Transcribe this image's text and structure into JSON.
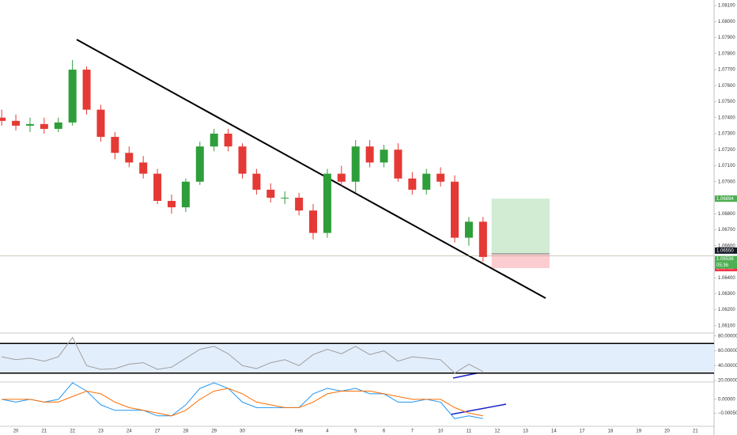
{
  "chart_data": {
    "type": "candlestick",
    "x": [
      -0.5,
      0,
      0.5,
      1,
      1.5,
      2,
      2.5,
      3,
      3.5,
      4,
      4.5,
      5,
      5.5,
      6,
      6.5,
      7,
      7.5,
      8,
      8.5,
      9,
      9.5,
      10,
      10.5,
      11,
      11.5,
      12,
      12.5,
      13,
      13.5,
      14,
      14.5,
      15,
      15.5,
      16,
      16.5
    ],
    "open": [
      1.074,
      1.0738,
      1.0735,
      1.0736,
      1.0733,
      1.0737,
      1.077,
      1.0745,
      1.0728,
      1.0718,
      1.0712,
      1.0705,
      1.0688,
      1.0684,
      1.07,
      1.0722,
      1.073,
      1.0722,
      1.0705,
      1.0695,
      1.069,
      1.069,
      1.0682,
      1.0668,
      1.0705,
      1.07,
      1.0722,
      1.0712,
      1.072,
      1.0702,
      1.0695,
      1.0705,
      1.07,
      1.0665,
      1.0675
    ],
    "high": [
      1.0745,
      1.0742,
      1.074,
      1.074,
      1.074,
      1.0776,
      1.0772,
      1.0748,
      1.0731,
      1.0722,
      1.0716,
      1.0708,
      1.0692,
      1.0702,
      1.0725,
      1.0733,
      1.0733,
      1.0724,
      1.0708,
      1.0699,
      1.0694,
      1.0693,
      1.0686,
      1.0708,
      1.071,
      1.0726,
      1.0726,
      1.0723,
      1.0724,
      1.0706,
      1.0708,
      1.0709,
      1.0704,
      1.0678,
      1.0678
    ],
    "low": [
      1.0735,
      1.0732,
      1.0731,
      1.073,
      1.0731,
      1.0735,
      1.0742,
      1.0725,
      1.0714,
      1.0709,
      1.0702,
      1.0686,
      1.068,
      1.0681,
      1.0698,
      1.0719,
      1.0719,
      1.0702,
      1.0692,
      1.0687,
      1.0686,
      1.0679,
      1.0664,
      1.0665,
      1.0697,
      1.0693,
      1.0709,
      1.0709,
      1.07,
      1.0692,
      1.0692,
      1.0697,
      1.0662,
      1.066,
      1.065
    ],
    "close": [
      1.0738,
      1.0735,
      1.0736,
      1.0733,
      1.0737,
      1.077,
      1.0745,
      1.0728,
      1.0718,
      1.0712,
      1.0705,
      1.0688,
      1.0684,
      1.07,
      1.0722,
      1.073,
      1.0722,
      1.0705,
      1.0695,
      1.069,
      1.069,
      1.0682,
      1.0668,
      1.0705,
      1.07,
      1.0722,
      1.0712,
      1.072,
      1.0702,
      1.0695,
      1.0705,
      1.07,
      1.0665,
      1.0675,
      1.0653
    ],
    "up_color": "#2e9e3a",
    "down_color": "#e53935",
    "xlim": [
      -0.56,
      24.66
    ],
    "xticks": [
      {
        "value": 0,
        "label": "20"
      },
      {
        "value": 1,
        "label": "21"
      },
      {
        "value": 2,
        "label": "22"
      },
      {
        "value": 3,
        "label": "23"
      },
      {
        "value": 4,
        "label": "24"
      },
      {
        "value": 5,
        "label": "27"
      },
      {
        "value": 6,
        "label": "28"
      },
      {
        "value": 7,
        "label": "29"
      },
      {
        "value": 8,
        "label": "30"
      },
      {
        "value": 10,
        "label": "Feb"
      },
      {
        "value": 11,
        "label": "4"
      },
      {
        "value": 12,
        "label": "5"
      },
      {
        "value": 13,
        "label": "6"
      },
      {
        "value": 14,
        "label": "7"
      },
      {
        "value": 15,
        "label": "10"
      },
      {
        "value": 16,
        "label": "11"
      },
      {
        "value": 17,
        "label": "12"
      },
      {
        "value": 18,
        "label": "13"
      },
      {
        "value": 19,
        "label": "14"
      },
      {
        "value": 20,
        "label": "17"
      },
      {
        "value": 21,
        "label": "18"
      },
      {
        "value": 22,
        "label": "19"
      },
      {
        "value": 23,
        "label": "20"
      },
      {
        "value": 24,
        "label": "21"
      }
    ],
    "ylim": [
      1.0606,
      1.08135
    ],
    "yticks": [
      {
        "value": 1.061,
        "label": "1.06100"
      },
      {
        "value": 1.062,
        "label": "1.06200"
      },
      {
        "value": 1.063,
        "label": "1.06300"
      },
      {
        "value": 1.064,
        "label": "1.06400"
      },
      {
        "value": 1.065,
        "label": "1.06500"
      },
      {
        "value": 1.066,
        "label": "1.06600"
      },
      {
        "value": 1.067,
        "label": "1.06700"
      },
      {
        "value": 1.068,
        "label": "1.06800"
      },
      {
        "value": 1.069,
        "label": "1.06900"
      },
      {
        "value": 1.07,
        "label": "1.07000"
      },
      {
        "value": 1.071,
        "label": "1.07100"
      },
      {
        "value": 1.072,
        "label": "1.07200"
      },
      {
        "value": 1.073,
        "label": "1.07300"
      },
      {
        "value": 1.074,
        "label": "1.07400"
      },
      {
        "value": 1.075,
        "label": "1.07500"
      },
      {
        "value": 1.076,
        "label": "1.07600"
      },
      {
        "value": 1.077,
        "label": "1.07700"
      },
      {
        "value": 1.078,
        "label": "1.07800"
      },
      {
        "value": 1.079,
        "label": "1.07900"
      },
      {
        "value": 1.08,
        "label": "1.08000"
      },
      {
        "value": 1.081,
        "label": "1.08100"
      }
    ],
    "tags": [
      {
        "value": 1.06894,
        "label": "1.06894",
        "color": "#4caf50"
      },
      {
        "value": 1.0655,
        "label": "1.06550",
        "color": "#131722"
      },
      {
        "value": 1.06536,
        "label": "1.06536",
        "color": "#4caf50"
      },
      {
        "value": 1.0646,
        "label": "1.06460",
        "color": "#f23645"
      }
    ],
    "countdown": "05:36",
    "rsi": {
      "color": "#9e9e9e",
      "band_color": "#e3eefc",
      "values": [
        52,
        48,
        50,
        46,
        52,
        78,
        40,
        35,
        36,
        42,
        44,
        35,
        38,
        50,
        62,
        66,
        56,
        40,
        36,
        44,
        48,
        40,
        55,
        62,
        56,
        66,
        55,
        60,
        46,
        52,
        50,
        48,
        30,
        42,
        32
      ],
      "bands": [
        30,
        70
      ],
      "ylim": [
        19,
        83
      ],
      "yticks": [
        {
          "value": 20,
          "label": "20.00000"
        },
        {
          "value": 40,
          "label": "40.00000"
        },
        {
          "value": 60,
          "label": "60.00000"
        },
        {
          "value": 80,
          "label": "80.00000"
        }
      ]
    },
    "macd": {
      "ylim": [
        -0.00095,
        0.0006
      ],
      "yticks": [
        {
          "value": -0.0005,
          "label": "−0.00050"
        },
        {
          "value": 0,
          "label": "0.00000"
        }
      ],
      "series": [
        {
          "color": "#2196f3",
          "values": [
            0,
            -0.0001,
            0,
            -0.0001,
            0,
            0.0006,
            0.0003,
            -0.0002,
            -0.0004,
            -0.0004,
            -0.0004,
            -0.0006,
            -0.0006,
            -0.0002,
            0.0004,
            0.0006,
            0.0004,
            -0.0001,
            -0.0003,
            -0.0003,
            -0.0003,
            -0.0003,
            0.0002,
            0.0004,
            0.0003,
            0.0004,
            0.0002,
            0.0002,
            -0.0001,
            -0.0001,
            0,
            -0.0001,
            -0.0007,
            -0.0006,
            -0.0007
          ]
        },
        {
          "color": "#ff6d00",
          "values": [
            0,
            0,
            0,
            -0.0001,
            -0.0001,
            0.0001,
            0.0003,
            0.0002,
            -0.0001,
            -0.0003,
            -0.0004,
            -0.0005,
            -0.0006,
            -0.0004,
            0,
            0.0003,
            0.0004,
            0.0002,
            -0.0001,
            -0.0002,
            -0.0003,
            -0.0003,
            -0.0001,
            0.0002,
            0.0003,
            0.0003,
            0.0003,
            0.0002,
            0.0001,
            0,
            0,
            0,
            -0.0003,
            -0.0005,
            -0.0006
          ]
        }
      ]
    }
  }
}
